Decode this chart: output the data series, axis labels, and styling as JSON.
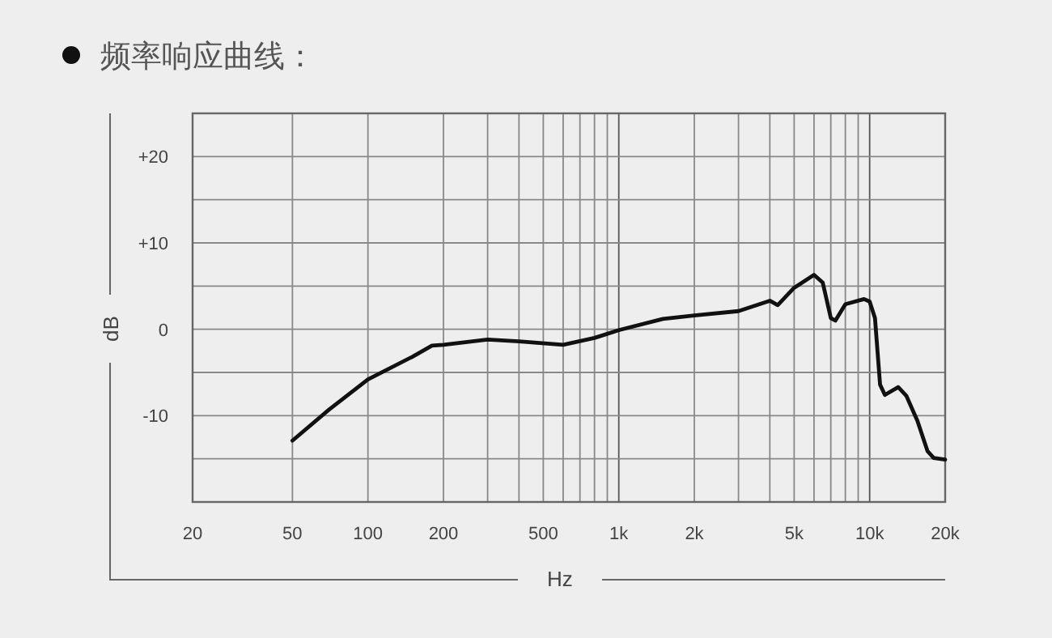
{
  "chart_data": {
    "type": "line",
    "title": "频率响应曲线：",
    "xlabel": "Hz",
    "ylabel": "dB",
    "log": "x",
    "grid": true,
    "marker": "none",
    "line_style": "solid",
    "xlim": [
      20,
      20000
    ],
    "ylim": [
      -20,
      25
    ],
    "xticks": [
      20,
      50,
      100,
      200,
      {
        "value": 300,
        "label": null
      },
      {
        "value": 400,
        "label": null
      },
      500,
      {
        "value": 600,
        "label": null
      },
      {
        "value": 700,
        "label": null
      },
      {
        "value": 800,
        "label": null
      },
      {
        "value": 900,
        "label": null
      },
      {
        "value": 1000,
        "label": "1k"
      },
      {
        "value": 2000,
        "label": "2k"
      },
      {
        "value": 3000,
        "label": null
      },
      {
        "value": 4000,
        "label": null
      },
      {
        "value": 5000,
        "label": "5k"
      },
      {
        "value": 6000,
        "label": null
      },
      {
        "value": 7000,
        "label": null
      },
      {
        "value": 8000,
        "label": null
      },
      {
        "value": 9000,
        "label": null
      },
      {
        "value": 10000,
        "label": "10k"
      },
      {
        "value": 20000,
        "label": "20k"
      }
    ],
    "yticks": [
      {
        "value": -20,
        "label": null
      },
      {
        "value": -15,
        "label": null
      },
      {
        "value": -10,
        "label": "-10"
      },
      {
        "value": -5,
        "label": null
      },
      0,
      {
        "value": 5,
        "label": null
      },
      {
        "value": 10,
        "label": "+10"
      },
      {
        "value": 15,
        "label": null
      },
      {
        "value": 20,
        "label": "+20"
      },
      {
        "value": 25,
        "label": null
      }
    ],
    "series": [
      {
        "color": "#111111",
        "x": [
          50,
          70,
          100,
          150,
          180,
          200,
          300,
          400,
          600,
          800,
          1000,
          1500,
          2000,
          3000,
          4000,
          4300,
          5000,
          6000,
          6500,
          7000,
          7300,
          8000,
          9500,
          10000,
          10500,
          11000,
          11500,
          13000,
          14000,
          15500,
          17000,
          18000,
          20000
        ],
        "values": [
          -12.9,
          -9.3,
          -5.8,
          -3.2,
          -1.9,
          -1.8,
          -1.2,
          -1.4,
          -1.8,
          -1.0,
          -0.1,
          1.2,
          1.6,
          2.1,
          3.3,
          2.8,
          4.8,
          6.3,
          5.4,
          1.3,
          1.0,
          2.9,
          3.5,
          3.2,
          1.3,
          -6.4,
          -7.6,
          -6.7,
          -7.7,
          -10.6,
          -14.1,
          -14.9,
          -15.1
        ]
      }
    ]
  }
}
